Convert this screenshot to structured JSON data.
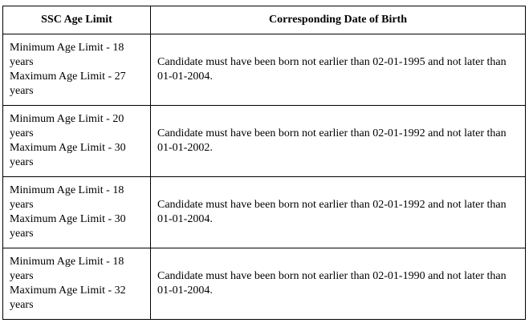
{
  "table": {
    "headers": [
      "SSC Age Limit",
      "Corresponding Date of Birth"
    ],
    "rows": [
      {
        "min_limit": "Minimum Age Limit - 18 years",
        "max_limit": "Maximum Age Limit - 27 years",
        "dob": "Candidate must have been born not earlier than 02-01-1995 and not later than 01-01-2004."
      },
      {
        "min_limit": "Minimum Age Limit - 20 years",
        "max_limit": "Maximum Age Limit - 30 years",
        "dob": "Candidate must have been born not earlier than 02-01-1992 and not later than 01-01-2002."
      },
      {
        "min_limit": "Minimum Age Limit - 18 years",
        "max_limit": "Maximum Age Limit - 30 years",
        "dob": "Candidate must have been born not earlier than 02-01-1992 and not later than 01-01-2004."
      },
      {
        "min_limit": "Minimum Age Limit - 18 years",
        "max_limit": "Maximum Age Limit - 32 years",
        "dob": "Candidate must have been born not earlier than 02-01-1990 and not later than 01-01-2004."
      }
    ]
  }
}
